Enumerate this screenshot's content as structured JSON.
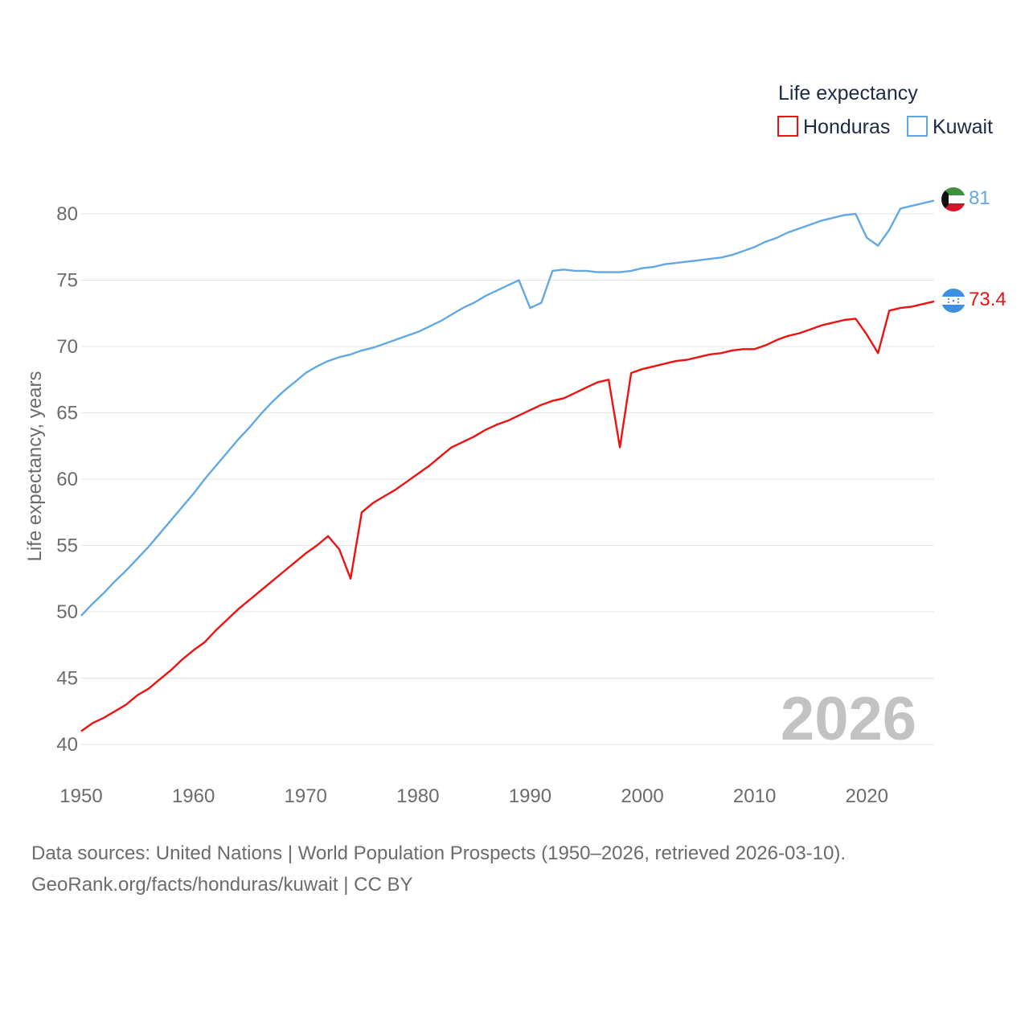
{
  "legend": {
    "title": "Life expectancy",
    "items": [
      {
        "label": "Honduras",
        "color": "#ee1111"
      },
      {
        "label": "Kuwait",
        "color": "#62a8e5"
      }
    ]
  },
  "watermark_year": "2026",
  "footer": {
    "line1": "Data sources: United Nations | World Population Prospects (1950–2026, retrieved 2026-03-10).",
    "line2": "GeoRank.org/facts/honduras/kuwait | CC BY"
  },
  "chart_data": {
    "type": "line",
    "title": "Life expectancy",
    "xlabel": "",
    "ylabel": "Life expectancy, years",
    "xlim": [
      1950,
      2026
    ],
    "ylim": [
      40,
      82
    ],
    "x_ticks": [
      1950,
      1960,
      1970,
      1980,
      1990,
      2000,
      2010,
      2020
    ],
    "y_ticks": [
      40,
      45,
      50,
      55,
      60,
      65,
      70,
      75,
      80
    ],
    "grid": true,
    "legend_position": "top-right",
    "x": [
      1950,
      1951,
      1952,
      1953,
      1954,
      1955,
      1956,
      1957,
      1958,
      1959,
      1960,
      1961,
      1962,
      1963,
      1964,
      1965,
      1966,
      1967,
      1968,
      1969,
      1970,
      1971,
      1972,
      1973,
      1974,
      1975,
      1976,
      1977,
      1978,
      1979,
      1980,
      1981,
      1982,
      1983,
      1984,
      1985,
      1986,
      1987,
      1988,
      1989,
      1990,
      1991,
      1992,
      1993,
      1994,
      1995,
      1996,
      1997,
      1998,
      1999,
      2000,
      2001,
      2002,
      2003,
      2004,
      2005,
      2006,
      2007,
      2008,
      2009,
      2010,
      2011,
      2012,
      2013,
      2014,
      2015,
      2016,
      2017,
      2018,
      2019,
      2020,
      2021,
      2022,
      2023,
      2024,
      2025,
      2026
    ],
    "series": [
      {
        "name": "Honduras",
        "color": "#ee1111",
        "end_label": "73.4",
        "flag": "honduras-flag-icon",
        "values": [
          41.0,
          41.6,
          42.0,
          42.5,
          43.0,
          43.7,
          44.2,
          44.9,
          45.6,
          46.4,
          47.1,
          47.7,
          48.6,
          49.4,
          50.2,
          50.9,
          51.6,
          52.3,
          53.0,
          53.7,
          54.4,
          55.0,
          55.7,
          54.7,
          52.5,
          57.5,
          58.2,
          58.7,
          59.2,
          59.8,
          60.4,
          61.0,
          61.7,
          62.4,
          62.8,
          63.2,
          63.7,
          64.1,
          64.4,
          64.8,
          65.2,
          65.6,
          65.9,
          66.1,
          66.5,
          66.9,
          67.3,
          67.5,
          62.4,
          68.0,
          68.3,
          68.5,
          68.7,
          68.9,
          69.0,
          69.2,
          69.4,
          69.5,
          69.7,
          69.8,
          69.8,
          70.1,
          70.5,
          70.8,
          71.0,
          71.3,
          71.6,
          71.8,
          72.0,
          72.1,
          70.9,
          69.5,
          72.7,
          72.9,
          73.0,
          73.2,
          73.4
        ]
      },
      {
        "name": "Kuwait",
        "color": "#62a8e5",
        "end_label": "81",
        "flag": "kuwait-flag-icon",
        "values": [
          49.7,
          50.6,
          51.4,
          52.3,
          53.1,
          54.0,
          54.9,
          55.9,
          56.9,
          57.9,
          58.9,
          60.0,
          61.0,
          62.0,
          63.0,
          63.9,
          64.9,
          65.8,
          66.6,
          67.3,
          68.0,
          68.5,
          68.9,
          69.2,
          69.4,
          69.7,
          69.9,
          70.2,
          70.5,
          70.8,
          71.1,
          71.5,
          71.9,
          72.4,
          72.9,
          73.3,
          73.8,
          74.2,
          74.6,
          75.0,
          72.9,
          73.3,
          75.7,
          75.8,
          75.7,
          75.7,
          75.6,
          75.6,
          75.6,
          75.7,
          75.9,
          76.0,
          76.2,
          76.3,
          76.4,
          76.5,
          76.6,
          76.7,
          76.9,
          77.2,
          77.5,
          77.9,
          78.2,
          78.6,
          78.9,
          79.2,
          79.5,
          79.7,
          79.9,
          80.0,
          78.2,
          77.6,
          78.8,
          80.4,
          80.6,
          80.8,
          81.0
        ]
      }
    ]
  }
}
